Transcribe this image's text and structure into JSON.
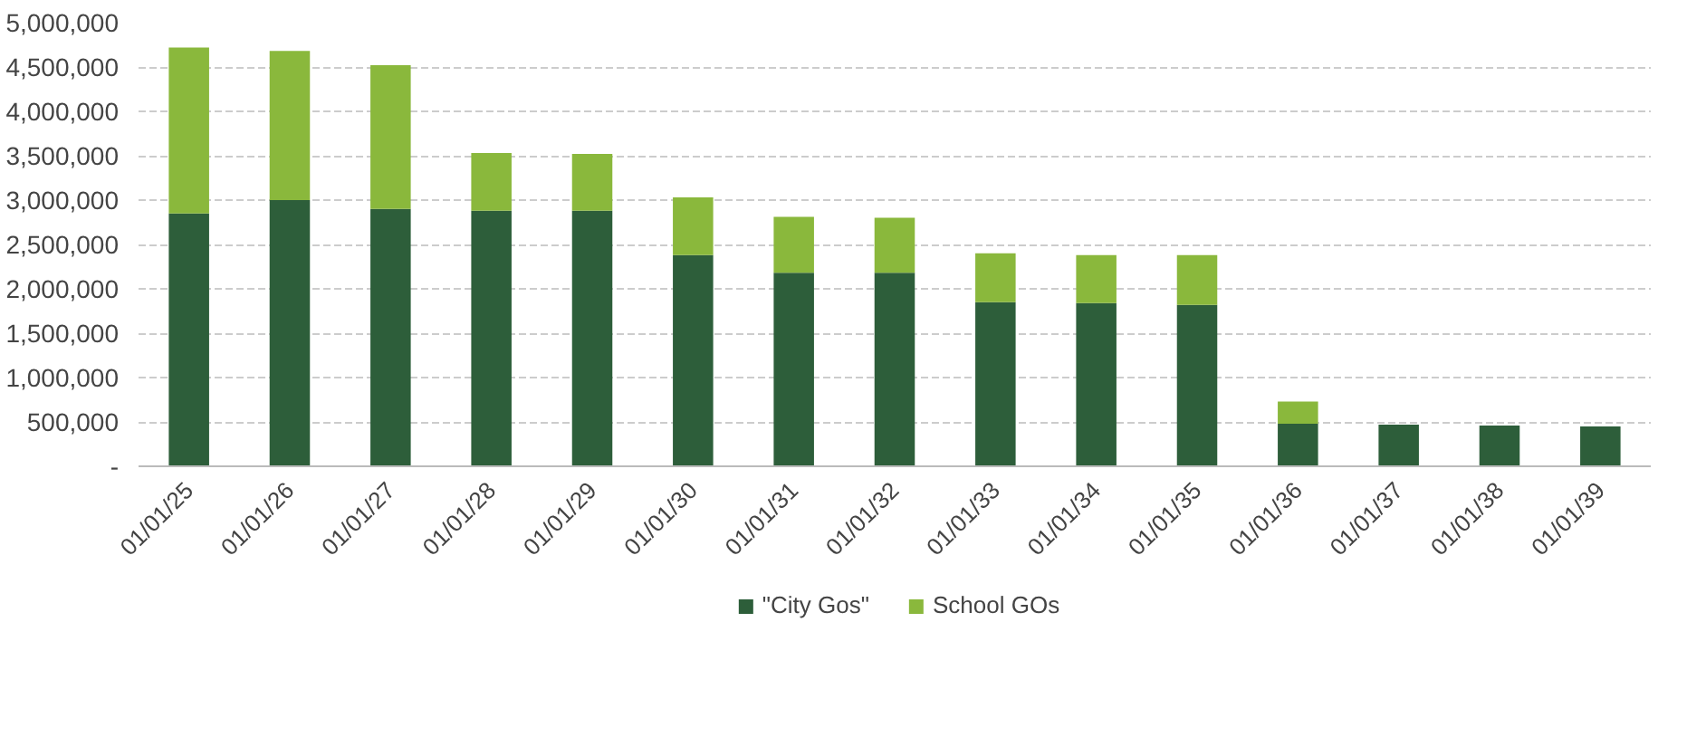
{
  "chart_data": {
    "type": "bar",
    "stacked": true,
    "categories": [
      "01/01/25",
      "01/01/26",
      "01/01/27",
      "01/01/28",
      "01/01/29",
      "01/01/30",
      "01/01/31",
      "01/01/32",
      "01/01/33",
      "01/01/34",
      "01/01/35",
      "01/01/36",
      "01/01/37",
      "01/01/38",
      "01/01/39"
    ],
    "series": [
      {
        "name": "\"City Gos\"",
        "color": "#2d5e3a",
        "values": [
          2850000,
          3000000,
          2900000,
          2880000,
          2880000,
          2380000,
          2180000,
          2180000,
          1850000,
          1840000,
          1820000,
          480000,
          470000,
          460000,
          450000
        ]
      },
      {
        "name": "School GOs",
        "color": "#8ab83c",
        "values": [
          1870000,
          1680000,
          1620000,
          650000,
          640000,
          650000,
          630000,
          620000,
          550000,
          540000,
          560000,
          250000,
          0,
          0,
          0
        ]
      }
    ],
    "ylim": [
      0,
      5000000
    ],
    "yticks": [
      {
        "value": 0,
        "label": "-"
      },
      {
        "value": 500000,
        "label": "500,000"
      },
      {
        "value": 1000000,
        "label": "1,000,000"
      },
      {
        "value": 1500000,
        "label": "1,500,000"
      },
      {
        "value": 2000000,
        "label": "2,000,000"
      },
      {
        "value": 2500000,
        "label": "2,500,000"
      },
      {
        "value": 3000000,
        "label": "3,000,000"
      },
      {
        "value": 3500000,
        "label": "3,500,000"
      },
      {
        "value": 4000000,
        "label": "4,000,000"
      },
      {
        "value": 4500000,
        "label": "4,500,000"
      },
      {
        "value": 5000000,
        "label": "5,000,000"
      }
    ],
    "grid": "y",
    "legend": "bottom"
  }
}
